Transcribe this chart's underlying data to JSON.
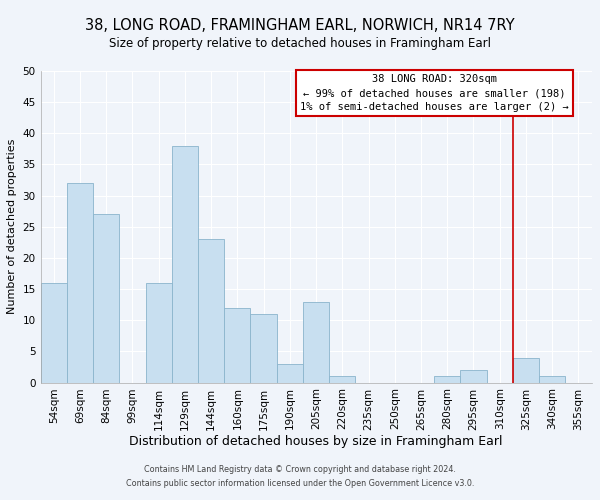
{
  "title": "38, LONG ROAD, FRAMINGHAM EARL, NORWICH, NR14 7RY",
  "subtitle": "Size of property relative to detached houses in Framingham Earl",
  "xlabel": "Distribution of detached houses by size in Framingham Earl",
  "ylabel": "Number of detached properties",
  "footer_line1": "Contains HM Land Registry data © Crown copyright and database right 2024.",
  "footer_line2": "Contains public sector information licensed under the Open Government Licence v3.0.",
  "bin_labels": [
    "54sqm",
    "69sqm",
    "84sqm",
    "99sqm",
    "114sqm",
    "129sqm",
    "144sqm",
    "160sqm",
    "175sqm",
    "190sqm",
    "205sqm",
    "220sqm",
    "235sqm",
    "250sqm",
    "265sqm",
    "280sqm",
    "295sqm",
    "310sqm",
    "325sqm",
    "340sqm",
    "355sqm"
  ],
  "bar_values": [
    16,
    32,
    27,
    0,
    16,
    38,
    23,
    12,
    11,
    3,
    13,
    1,
    0,
    0,
    0,
    1,
    2,
    0,
    4,
    1,
    0
  ],
  "bar_color": "#c8dff0",
  "bar_edge_color": "#8ab4cc",
  "ylim": [
    0,
    50
  ],
  "yticks": [
    0,
    5,
    10,
    15,
    20,
    25,
    30,
    35,
    40,
    45,
    50
  ],
  "property_line_bin": 18,
  "property_line_label": "38 LONG ROAD: 320sqm",
  "annotation_line1": "← 99% of detached houses are smaller (198)",
  "annotation_line2": "1% of semi-detached houses are larger (2) →",
  "annotation_box_color": "#ffffff",
  "annotation_box_edge_color": "#cc0000",
  "background_color": "#f0f4fa",
  "grid_color": "#ffffff",
  "title_fontsize": 10.5,
  "subtitle_fontsize": 8.5,
  "xlabel_fontsize": 9,
  "ylabel_fontsize": 8,
  "tick_fontsize": 7.5,
  "ann_fontsize": 7.5
}
